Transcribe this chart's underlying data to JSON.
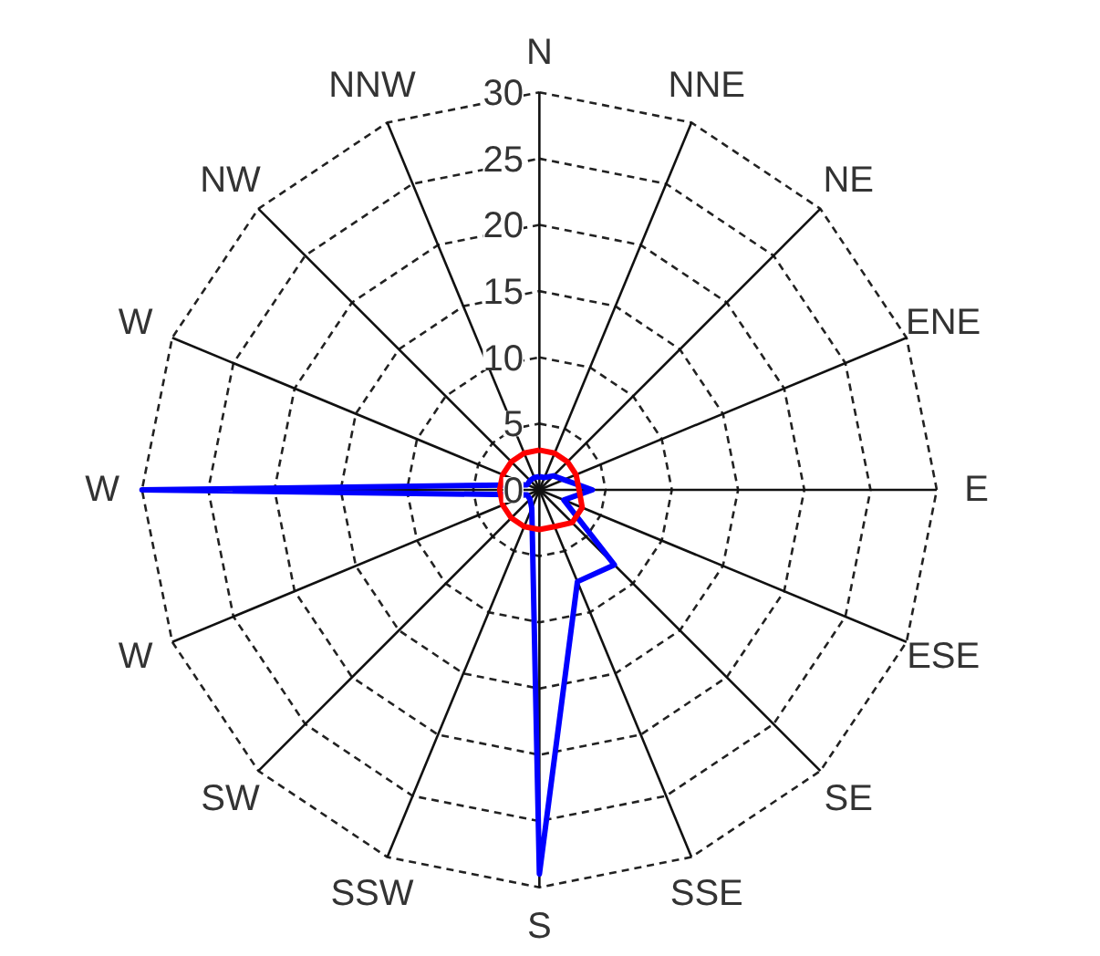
{
  "chart_data": {
    "type": "radar",
    "categories": [
      "N",
      "NNE",
      "NE",
      "ENE",
      "E",
      "ESE",
      "SE",
      "SSE",
      "S",
      "SSW",
      "SW",
      "W",
      "W",
      "W",
      "NW",
      "NNW"
    ],
    "series": [
      {
        "color": "#0000ff",
        "values": [
          1,
          1,
          1.5,
          2,
          4,
          2,
          8,
          7.5,
          29,
          1.5,
          1,
          1,
          30,
          1,
          1,
          1
        ]
      },
      {
        "color": "#ff0000",
        "values": [
          3,
          3,
          3,
          3,
          3,
          3.5,
          3.5,
          3,
          3,
          3,
          3,
          3,
          3,
          3,
          3,
          3
        ]
      }
    ],
    "ylim": [
      0,
      30
    ],
    "yticks": [
      0,
      5,
      10,
      15,
      20,
      25,
      30
    ],
    "grid": true
  }
}
